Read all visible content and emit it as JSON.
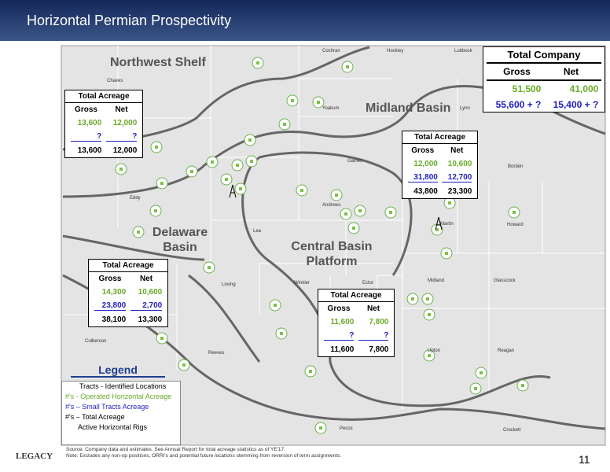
{
  "header": {
    "title": "Horizontal Permian Prospectivity"
  },
  "regions": [
    "Northwest Shelf",
    "Midland Basin",
    "Delaware Basin",
    "Central Basin Platform"
  ],
  "counties": [
    "Cochran",
    "Hockley",
    "Lubbock",
    "Chaves",
    "Yoakum",
    "Lynn",
    "Gaines",
    "Borden",
    "Eddy",
    "Lea",
    "Andrews",
    "Martin",
    "Howard",
    "Loving",
    "Winkler",
    "Ector",
    "Midland",
    "Glasscock",
    "Culberson",
    "Reeves",
    "Upton",
    "Reagan",
    "Pecos",
    "Crockett"
  ],
  "tables": [
    {
      "title": "Total Acreage",
      "headers": [
        "Gross",
        "Net"
      ],
      "rows": [
        [
          "13,600",
          "12,000"
        ],
        [
          "?",
          "?"
        ],
        [
          "13,600",
          "12,000"
        ]
      ]
    },
    {
      "title": "Total Acreage",
      "headers": [
        "Gross",
        "Net"
      ],
      "rows": [
        [
          "12,000",
          "10,600"
        ],
        [
          "31,800",
          "12,700"
        ],
        [
          "43,800",
          "23,300"
        ]
      ]
    },
    {
      "title": "Total Acreage",
      "headers": [
        "Gross",
        "Net"
      ],
      "rows": [
        [
          "14,300",
          "10,600"
        ],
        [
          "23,800",
          "2,700"
        ],
        [
          "38,100",
          "13,300"
        ]
      ]
    },
    {
      "title": "Total Acreage",
      "headers": [
        "Gross",
        "Net"
      ],
      "rows": [
        [
          "11,600",
          "7,800"
        ],
        [
          "?",
          "?"
        ],
        [
          "11,600",
          "7,800"
        ]
      ]
    }
  ],
  "total_company": {
    "title": "Total Company",
    "headers": [
      "Gross",
      "Net"
    ],
    "rows": [
      [
        "51,500",
        "41,000"
      ],
      [
        "55,600 + ?",
        "15,400 + ?"
      ]
    ]
  },
  "legend": {
    "title": "Legend",
    "items": [
      "Tracts - Identified Locations",
      "#'s - Operated Horizontal Acreage",
      "#'s – Small Tracts Acreage",
      "#'s – Total Acreage",
      "Active Horizontal Rigs"
    ]
  },
  "footer": {
    "source": "Source:    Company data and estimates. See Annual Report for total acreage statistics as of YE'17.",
    "note": "Note: Excludes any non-op positions, ORRI's and potential future locations stemming from reversion of term assignments.",
    "page": "11",
    "logo": "LEGACY"
  }
}
